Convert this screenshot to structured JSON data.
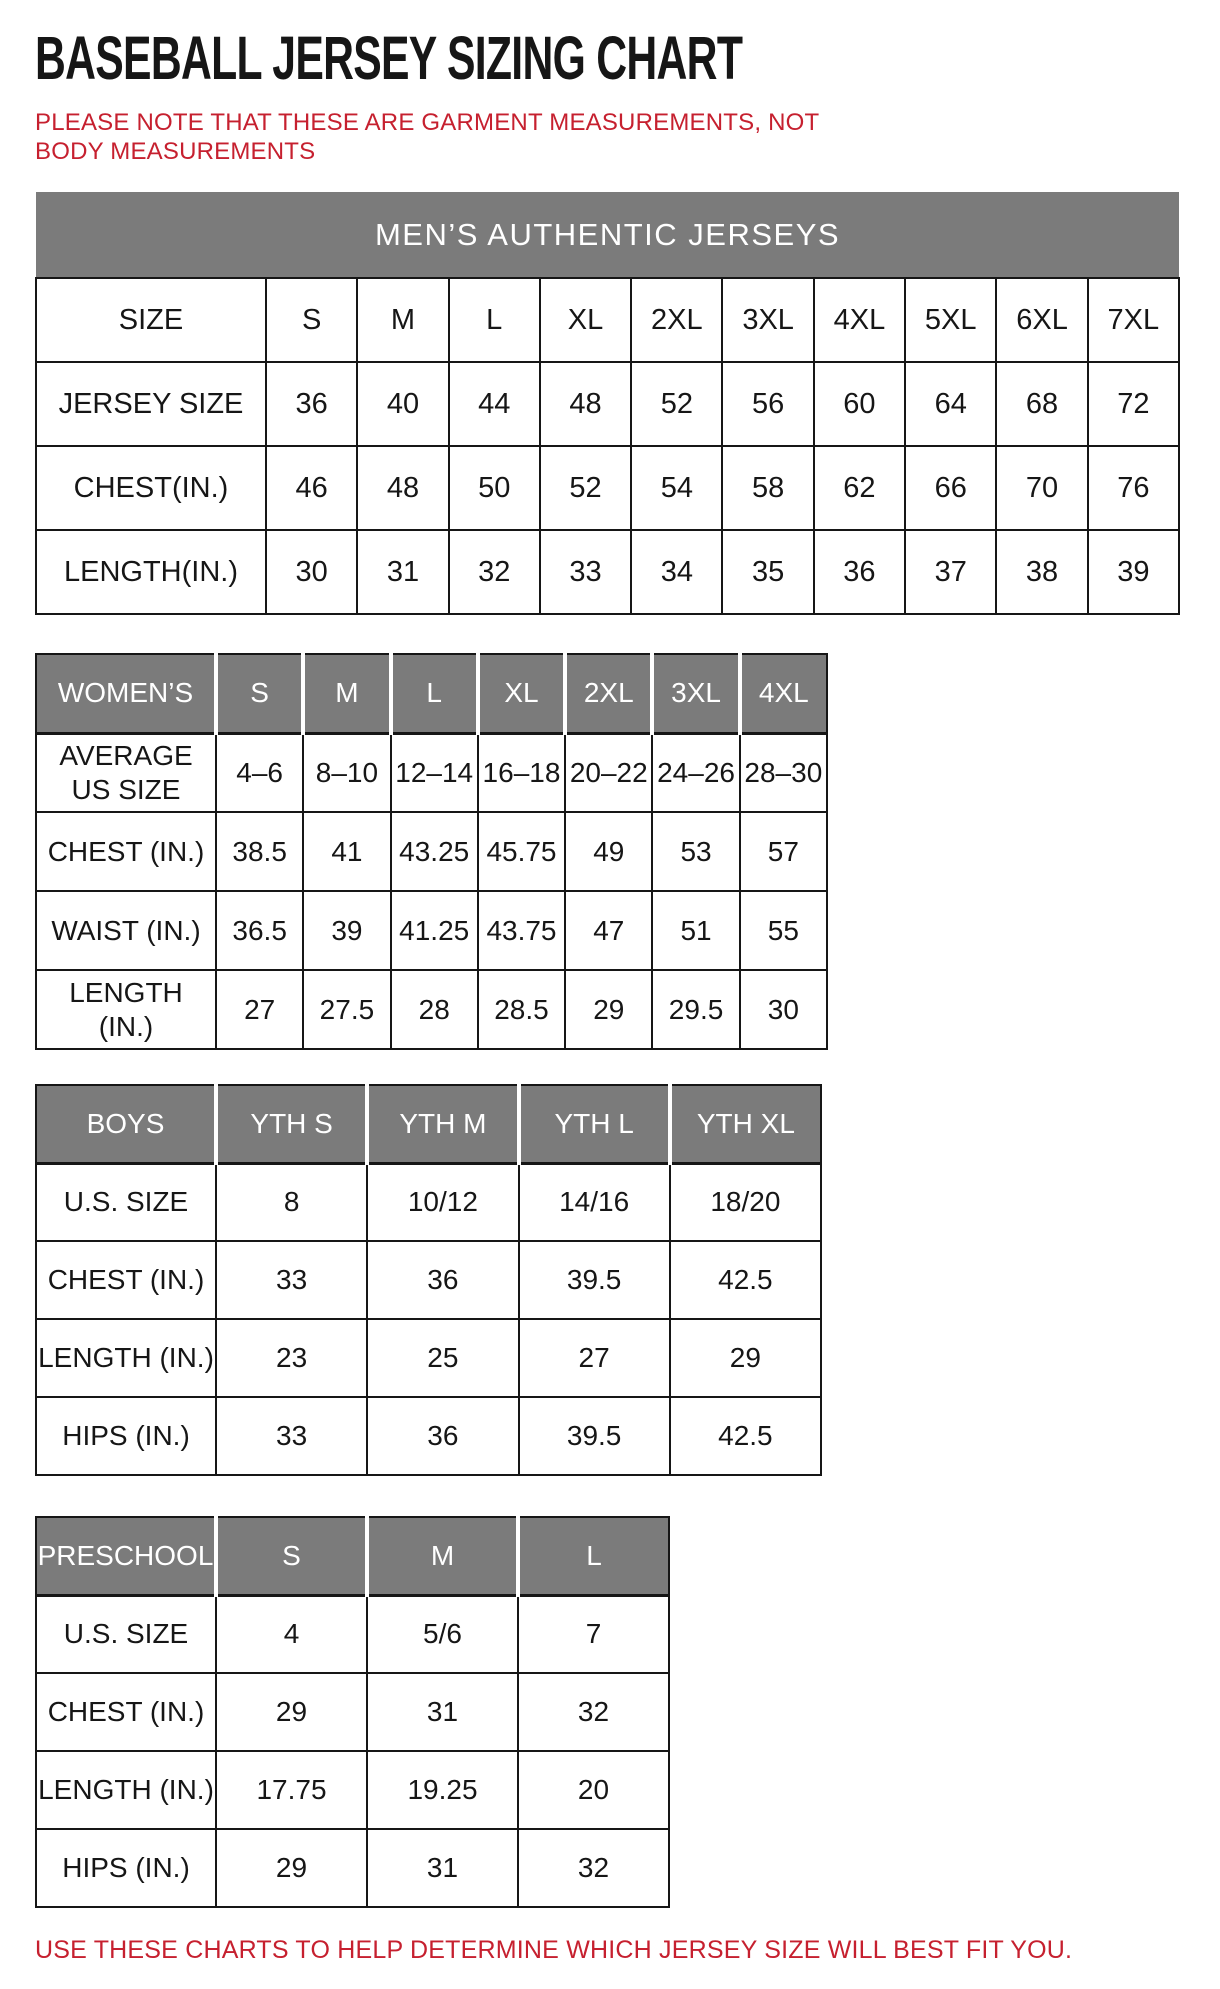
{
  "page": {
    "title": "BASEBALL JERSEY SIZING CHART",
    "note": "PLEASE NOTE THAT THESE ARE GARMENT MEASUREMENTS, NOT BODY MEASUREMENTS",
    "footer": "USE THESE CHARTS TO HELP DETERMINE WHICH JERSEY SIZE WILL BEST FIT YOU.",
    "colors": {
      "accent_red": "#c6202f",
      "header_gray": "#7b7b7b"
    }
  },
  "tables": {
    "mens": {
      "banner": "MEN’S AUTHENTIC JERSEYS",
      "columns": [
        "SIZE",
        "S",
        "M",
        "L",
        "XL",
        "2XL",
        "3XL",
        "4XL",
        "5XL",
        "6XL",
        "7XL"
      ],
      "rows": [
        {
          "label": "JERSEY SIZE",
          "values": [
            "36",
            "40",
            "44",
            "48",
            "52",
            "56",
            "60",
            "64",
            "68",
            "72"
          ]
        },
        {
          "label": "CHEST(IN.)",
          "values": [
            "46",
            "48",
            "50",
            "52",
            "54",
            "58",
            "62",
            "66",
            "70",
            "76"
          ]
        },
        {
          "label": "LENGTH(IN.)",
          "values": [
            "30",
            "31",
            "32",
            "33",
            "34",
            "35",
            "36",
            "37",
            "38",
            "39"
          ]
        }
      ]
    },
    "womens": {
      "header": [
        "WOMEN’S",
        "S",
        "M",
        "L",
        "XL",
        "2XL",
        "3XL",
        "4XL"
      ],
      "rows": [
        {
          "label": "AVERAGE US SIZE",
          "values": [
            "4–6",
            "8–10",
            "12–14",
            "16–18",
            "20–22",
            "24–26",
            "28–30"
          ]
        },
        {
          "label": "CHEST (IN.)",
          "values": [
            "38.5",
            "41",
            "43.25",
            "45.75",
            "49",
            "53",
            "57"
          ]
        },
        {
          "label": "WAIST (IN.)",
          "values": [
            "36.5",
            "39",
            "41.25",
            "43.75",
            "47",
            "51",
            "55"
          ]
        },
        {
          "label": "LENGTH (IN.)",
          "values": [
            "27",
            "27.5",
            "28",
            "28.5",
            "29",
            "29.5",
            "30"
          ]
        }
      ]
    },
    "boys": {
      "header": [
        "BOYS",
        "YTH S",
        "YTH M",
        "YTH L",
        "YTH XL"
      ],
      "rows": [
        {
          "label": "U.S. SIZE",
          "values": [
            "8",
            "10/12",
            "14/16",
            "18/20"
          ]
        },
        {
          "label": "CHEST (IN.)",
          "values": [
            "33",
            "36",
            "39.5",
            "42.5"
          ]
        },
        {
          "label": "LENGTH (IN.)",
          "values": [
            "23",
            "25",
            "27",
            "29"
          ]
        },
        {
          "label": "HIPS (IN.)",
          "values": [
            "33",
            "36",
            "39.5",
            "42.5"
          ]
        }
      ]
    },
    "preschool": {
      "header": [
        "PRESCHOOL",
        "S",
        "M",
        "L"
      ],
      "rows": [
        {
          "label": "U.S. SIZE",
          "values": [
            "4",
            "5/6",
            "7"
          ]
        },
        {
          "label": "CHEST (IN.)",
          "values": [
            "29",
            "31",
            "32"
          ]
        },
        {
          "label": "LENGTH (IN.)",
          "values": [
            "17.75",
            "19.25",
            "20"
          ]
        },
        {
          "label": "HIPS (IN.)",
          "values": [
            "29",
            "31",
            "32"
          ]
        }
      ]
    }
  }
}
